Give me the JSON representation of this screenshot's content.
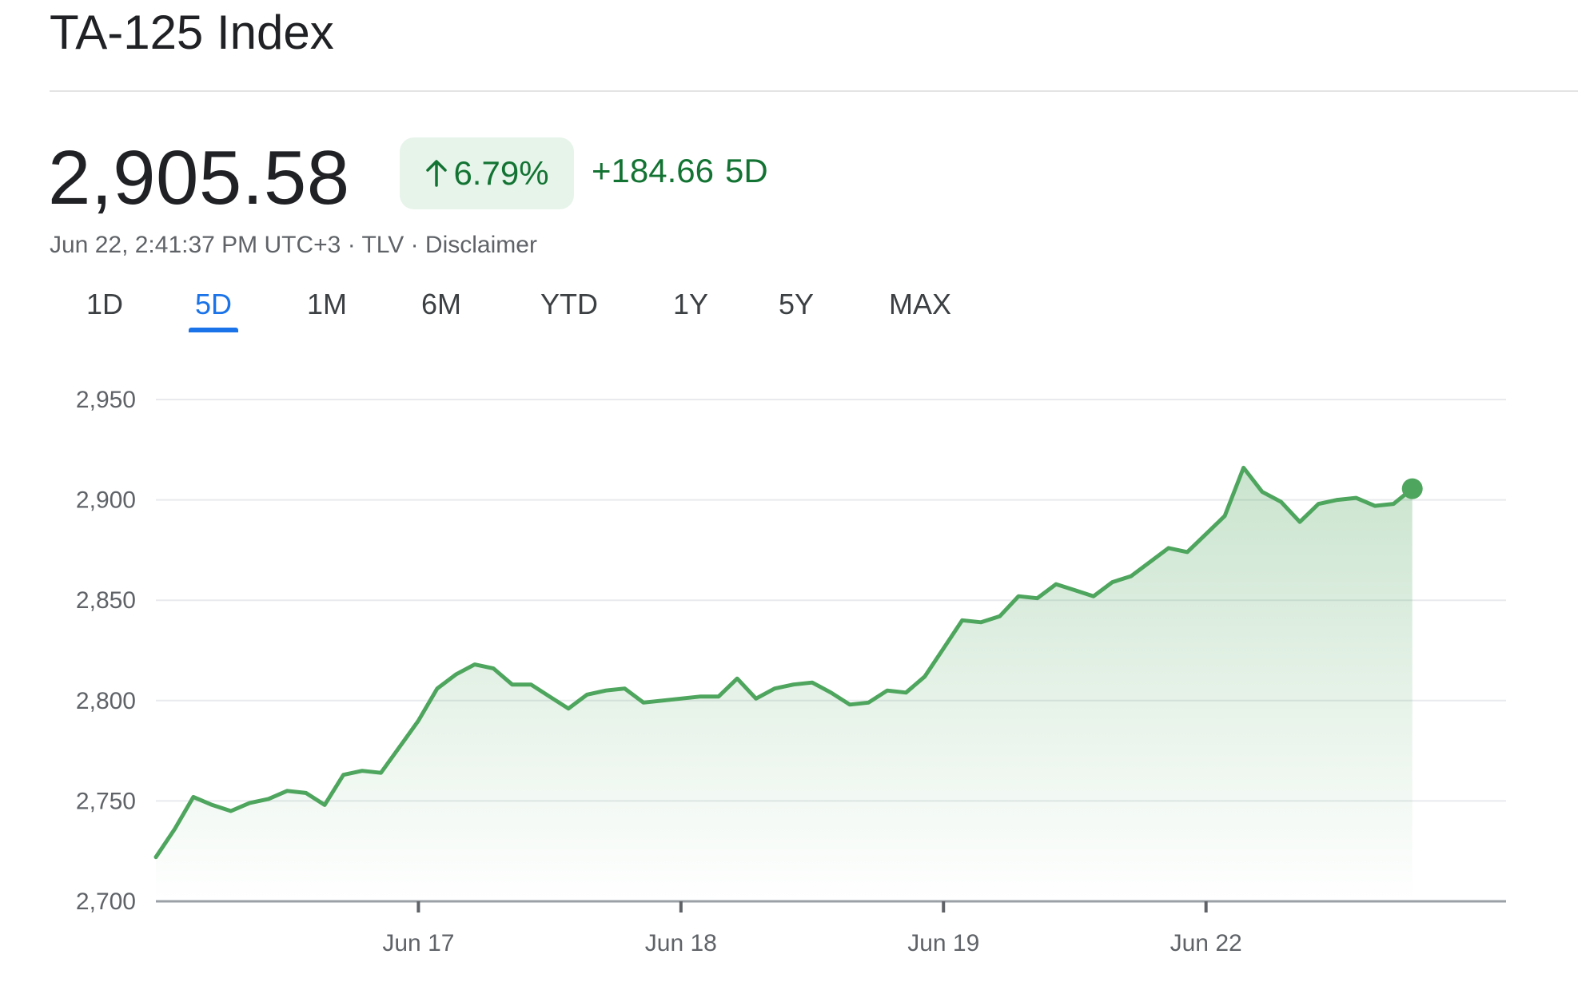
{
  "header": {
    "title": "TA-125 Index",
    "price": "2,905.58",
    "percent_change": "6.79%",
    "abs_change": "+184.66",
    "period": "5D",
    "meta": "Jun 22, 2:41:37 PM UTC+3 · TLV · Disclaimer"
  },
  "colors": {
    "positive": "#137333",
    "line": "#4ea55d",
    "accent": "#1a73e8",
    "badge_bg": "#e6f4ea"
  },
  "icons": {
    "change_arrow": "arrow-up-icon"
  },
  "tabs": [
    {
      "label": "1D",
      "active": false
    },
    {
      "label": "5D",
      "active": true
    },
    {
      "label": "1M",
      "active": false
    },
    {
      "label": "6M",
      "active": false
    },
    {
      "label": "YTD",
      "active": false
    },
    {
      "label": "1Y",
      "active": false
    },
    {
      "label": "5Y",
      "active": false
    },
    {
      "label": "MAX",
      "active": false
    }
  ],
  "chart_data": {
    "type": "area",
    "ylim": [
      2700,
      2950
    ],
    "yticks": [
      2700,
      2750,
      2800,
      2850,
      2900,
      2950
    ],
    "ytick_labels": [
      "2,700",
      "2,750",
      "2,800",
      "2,850",
      "2,900",
      "2,950"
    ],
    "xticks": [
      {
        "label": "Jun 17",
        "at": 14
      },
      {
        "label": "Jun 18",
        "at": 28
      },
      {
        "label": "Jun 19",
        "at": 42
      },
      {
        "label": "Jun 22",
        "at": 56
      }
    ],
    "x_count": 73,
    "grid": true,
    "series": [
      {
        "values": [
          2722,
          2736,
          2752,
          2748,
          2745,
          2749,
          2751,
          2755,
          2754,
          2748,
          2763,
          2765,
          2764,
          2777,
          2790,
          2806,
          2813,
          2818,
          2816,
          2808,
          2808,
          2802,
          2796,
          2803,
          2805,
          2806,
          2799,
          2800,
          2801,
          2802,
          2802,
          2811,
          2801,
          2806,
          2808,
          2809,
          2804,
          2798,
          2799,
          2805,
          2804,
          2812,
          2826,
          2840,
          2839,
          2842,
          2852,
          2851,
          2858,
          2855,
          2852,
          2859,
          2862,
          2869,
          2876,
          2874,
          2883,
          2892,
          2916,
          2904,
          2899,
          2889,
          2898,
          2900,
          2901,
          2897,
          2898
        ],
        "last_value": 2905.58
      }
    ]
  }
}
